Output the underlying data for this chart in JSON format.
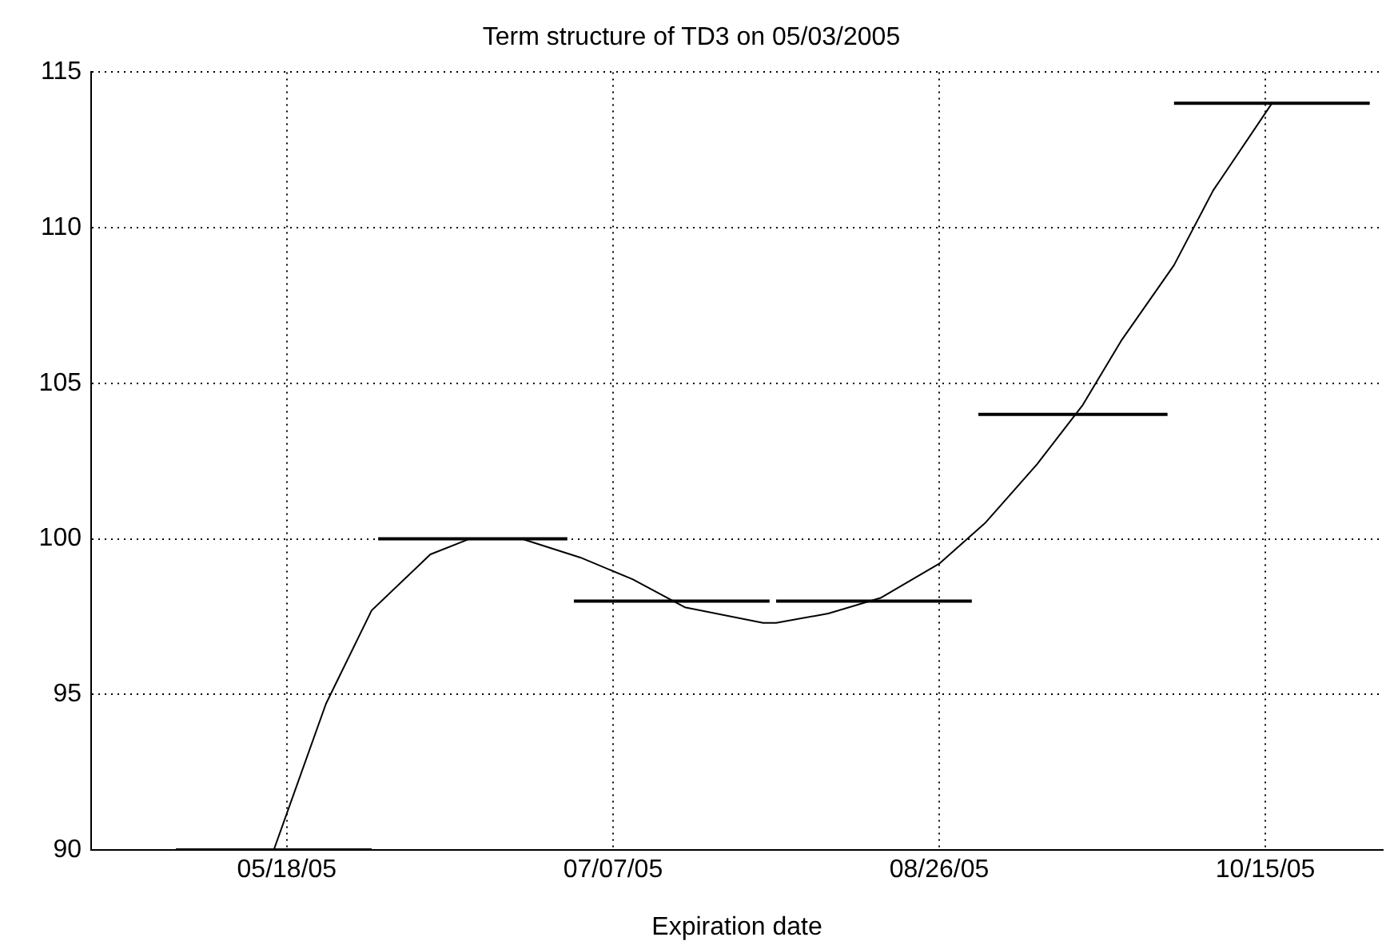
{
  "chart_data": {
    "type": "line",
    "title": "Term structure of TD3 on 05/03/2005",
    "xlabel": "Expiration date",
    "xlim": [
      "2005-04-18",
      "2005-11-02"
    ],
    "xticks": [
      {
        "value": "2005-05-18",
        "label": "05/18/05"
      },
      {
        "value": "2005-07-07",
        "label": "07/07/05"
      },
      {
        "value": "2005-08-26",
        "label": "08/26/05"
      },
      {
        "value": "2005-10-15",
        "label": "10/15/05"
      }
    ],
    "ylim": [
      90,
      115
    ],
    "yticks": [
      90,
      95,
      100,
      105,
      110,
      115
    ],
    "grid": true,
    "legend": false,
    "marker": "none",
    "line_style": "solid",
    "series": [
      {
        "color": "#000000",
        "x": [
          "2005-05-16",
          "2005-05-24",
          "2005-05-31",
          "2005-06-09",
          "2005-06-15",
          "2005-06-23",
          "2005-07-02",
          "2005-07-10",
          "2005-07-18",
          "2005-07-30",
          "2005-08-01",
          "2005-08-09",
          "2005-08-17",
          "2005-08-26",
          "2005-09-02",
          "2005-09-10",
          "2005-09-17",
          "2005-09-23",
          "2005-10-01",
          "2005-10-07",
          "2005-10-16"
        ],
        "values": [
          90,
          94.7,
          97.7,
          99.5,
          100,
          100,
          99.4,
          98.7,
          97.8,
          97.3,
          97.3,
          97.6,
          98.1,
          99.2,
          100.5,
          102.4,
          104.3,
          106.4,
          108.8,
          111.2,
          114
        ]
      },
      {
        "color": "#000000",
        "x": [
          "2005-05-01",
          "2005-05-31"
        ],
        "values": [
          90,
          90
        ]
      },
      {
        "color": "#000000",
        "x": [
          "2005-06-01",
          "2005-06-30"
        ],
        "values": [
          100,
          100
        ]
      },
      {
        "color": "#000000",
        "x": [
          "2005-07-01",
          "2005-07-31"
        ],
        "values": [
          98,
          98
        ]
      },
      {
        "color": "#000000",
        "x": [
          "2005-08-01",
          "2005-08-31"
        ],
        "values": [
          98,
          98
        ]
      },
      {
        "color": "#000000",
        "x": [
          "2005-09-01",
          "2005-09-30"
        ],
        "values": [
          104,
          104
        ]
      },
      {
        "color": "#000000",
        "x": [
          "2005-10-01",
          "2005-10-31"
        ],
        "values": [
          114,
          114
        ]
      }
    ]
  }
}
